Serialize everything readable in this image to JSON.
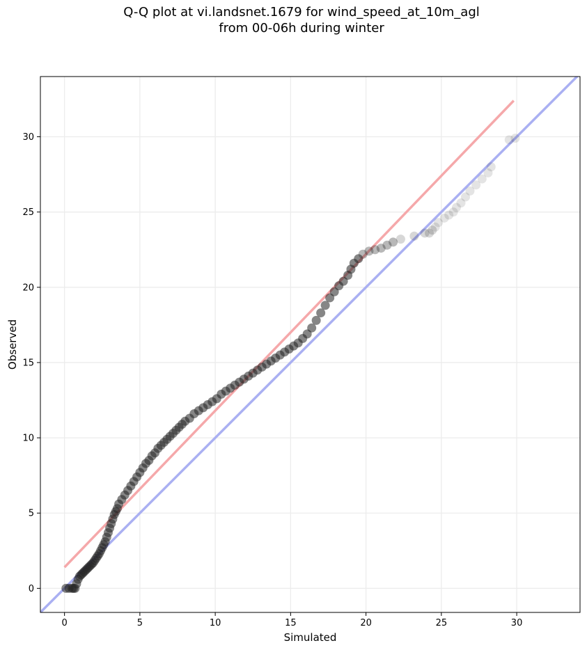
{
  "chart_data": {
    "type": "scatter",
    "title_line1": "Q-Q plot at vi.landsnet.1679 for wind_speed_at_10m_agl",
    "title_line2": "from 00-06h during winter",
    "xlabel": "Simulated",
    "ylabel": "Observed",
    "xlim": [
      -1.6,
      34.2
    ],
    "ylim": [
      -1.6,
      34.0
    ],
    "xticks": [
      0,
      5,
      10,
      15,
      20,
      25,
      30
    ],
    "yticks": [
      0,
      5,
      10,
      15,
      20,
      25,
      30
    ],
    "grid": true,
    "colors": {
      "points": "#222222",
      "identity_line": "#aab0f2",
      "fit_line": "#f5a8aa"
    },
    "reference_lines": [
      {
        "kind": "identity",
        "x": [
          -1.6,
          34.2
        ],
        "y": [
          -1.6,
          34.2
        ]
      },
      {
        "kind": "fit",
        "x": [
          0.0,
          29.8
        ],
        "y": [
          1.4,
          32.4
        ]
      }
    ],
    "series": [
      {
        "x": [
          0.1,
          0.3,
          0.5,
          0.6,
          0.7,
          0.8,
          0.9,
          1.0,
          1.1,
          1.2,
          1.3,
          1.4,
          1.5,
          1.6,
          1.7,
          1.8,
          1.9,
          2.0,
          2.1,
          2.2,
          2.3,
          2.4,
          2.5,
          2.6,
          2.7,
          2.8,
          2.9,
          3.0,
          3.1,
          3.2,
          3.3,
          3.4,
          3.5,
          3.6,
          3.8,
          4.0,
          4.2,
          4.4,
          4.6,
          4.8,
          5.0,
          5.2,
          5.4,
          5.6,
          5.8,
          6.0,
          6.2,
          6.4,
          6.6,
          6.8,
          7.0,
          7.2,
          7.4,
          7.6,
          7.8,
          8.0,
          8.3,
          8.6,
          8.9,
          9.2,
          9.5,
          9.8,
          10.1,
          10.4,
          10.7,
          11.0,
          11.3,
          11.6,
          11.9,
          12.2,
          12.5,
          12.8,
          13.1,
          13.4,
          13.7,
          14.0,
          14.3,
          14.6,
          14.9,
          15.2,
          15.5,
          15.8,
          16.1,
          16.4,
          16.7,
          17.0,
          17.3,
          17.6,
          17.9,
          18.2,
          18.5,
          18.8,
          19.0,
          19.2,
          19.5,
          19.8,
          20.2,
          20.6,
          21.0,
          21.4,
          21.8,
          22.3,
          23.2,
          23.9,
          24.2,
          24.4,
          24.6,
          24.8,
          25.2,
          25.5,
          25.8,
          26.0,
          26.3,
          26.6,
          26.9,
          27.3,
          27.7,
          28.1,
          28.3,
          29.5,
          29.9
        ],
        "y": [
          0.0,
          0.0,
          0.0,
          0.0,
          0.0,
          0.3,
          0.6,
          0.8,
          0.9,
          1.0,
          1.1,
          1.2,
          1.3,
          1.4,
          1.5,
          1.6,
          1.7,
          1.85,
          2.0,
          2.15,
          2.3,
          2.5,
          2.7,
          2.9,
          3.1,
          3.4,
          3.7,
          4.0,
          4.3,
          4.6,
          4.9,
          5.1,
          5.3,
          5.6,
          5.9,
          6.2,
          6.5,
          6.8,
          7.1,
          7.4,
          7.7,
          8.0,
          8.3,
          8.5,
          8.8,
          9.0,
          9.3,
          9.5,
          9.7,
          9.9,
          10.1,
          10.3,
          10.5,
          10.7,
          10.9,
          11.1,
          11.3,
          11.6,
          11.8,
          12.0,
          12.2,
          12.4,
          12.6,
          12.9,
          13.1,
          13.3,
          13.5,
          13.7,
          13.9,
          14.1,
          14.3,
          14.5,
          14.7,
          14.9,
          15.1,
          15.3,
          15.5,
          15.7,
          15.9,
          16.1,
          16.3,
          16.6,
          16.9,
          17.3,
          17.8,
          18.3,
          18.8,
          19.3,
          19.7,
          20.1,
          20.4,
          20.8,
          21.2,
          21.6,
          21.9,
          22.2,
          22.4,
          22.5,
          22.6,
          22.8,
          23.0,
          23.2,
          23.4,
          23.6,
          23.6,
          23.8,
          24.0,
          24.3,
          24.6,
          24.8,
          25.0,
          25.3,
          25.6,
          26.0,
          26.4,
          26.8,
          27.2,
          27.6,
          28.0,
          29.8,
          29.9
        ]
      }
    ]
  }
}
